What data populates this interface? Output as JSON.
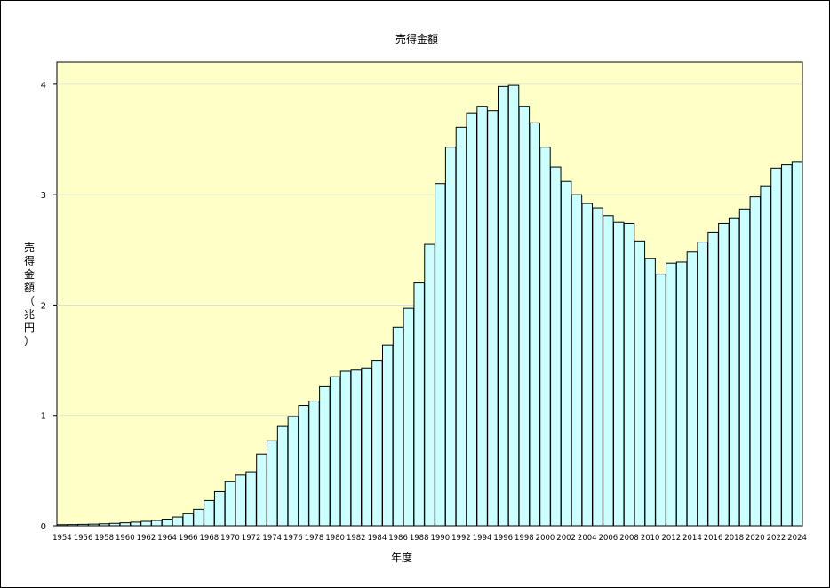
{
  "chart_data": {
    "type": "bar",
    "title": "売得金額",
    "xlabel": "年度",
    "ylabel": "売得金額（兆円）",
    "ylim": [
      0,
      4.2
    ],
    "yticks": [
      0,
      1,
      2,
      3,
      4
    ],
    "grid": true,
    "legend": "none",
    "colors": {
      "plot_bg": "#ffffc8",
      "bar_fill": "#ccffff",
      "bar_stroke": "#000000",
      "grid": "#d9d9d9"
    },
    "categories": [
      1954,
      1955,
      1956,
      1957,
      1958,
      1959,
      1960,
      1961,
      1962,
      1963,
      1964,
      1965,
      1966,
      1967,
      1968,
      1969,
      1970,
      1971,
      1972,
      1973,
      1974,
      1975,
      1976,
      1977,
      1978,
      1979,
      1980,
      1981,
      1982,
      1983,
      1984,
      1985,
      1986,
      1987,
      1988,
      1989,
      1990,
      1991,
      1992,
      1993,
      1994,
      1995,
      1996,
      1997,
      1998,
      1999,
      2000,
      2001,
      2002,
      2003,
      2004,
      2005,
      2006,
      2007,
      2008,
      2009,
      2010,
      2011,
      2012,
      2013,
      2014,
      2015,
      2016,
      2017,
      2018,
      2019,
      2020,
      2021,
      2022,
      2023,
      2024
    ],
    "tick_labels": [
      "1954",
      "1956",
      "1958",
      "1960",
      "1962",
      "1964",
      "1966",
      "1968",
      "1970",
      "1972",
      "1974",
      "1976",
      "1978",
      "1980",
      "1982",
      "1984",
      "1986",
      "1988",
      "1990",
      "1992",
      "1994",
      "1996",
      "1998",
      "2000",
      "2002",
      "2004",
      "2006",
      "2008",
      "2010",
      "2012",
      "2014",
      "2016",
      "2018",
      "2020",
      "2022",
      "2024"
    ],
    "values": [
      0.01,
      0.011,
      0.013,
      0.015,
      0.018,
      0.022,
      0.027,
      0.033,
      0.04,
      0.048,
      0.06,
      0.08,
      0.11,
      0.15,
      0.23,
      0.31,
      0.4,
      0.46,
      0.49,
      0.65,
      0.77,
      0.9,
      0.99,
      1.09,
      1.13,
      1.26,
      1.35,
      1.4,
      1.41,
      1.43,
      1.5,
      1.64,
      1.8,
      1.97,
      2.2,
      2.55,
      3.1,
      3.43,
      3.61,
      3.74,
      3.8,
      3.76,
      3.98,
      3.99,
      3.8,
      3.65,
      3.43,
      3.25,
      3.12,
      3.0,
      2.92,
      2.88,
      2.81,
      2.75,
      2.74,
      2.58,
      2.42,
      2.28,
      2.38,
      2.39,
      2.48,
      2.57,
      2.66,
      2.74,
      2.79,
      2.87,
      2.98,
      3.08,
      3.24,
      3.27,
      3.3
    ]
  }
}
